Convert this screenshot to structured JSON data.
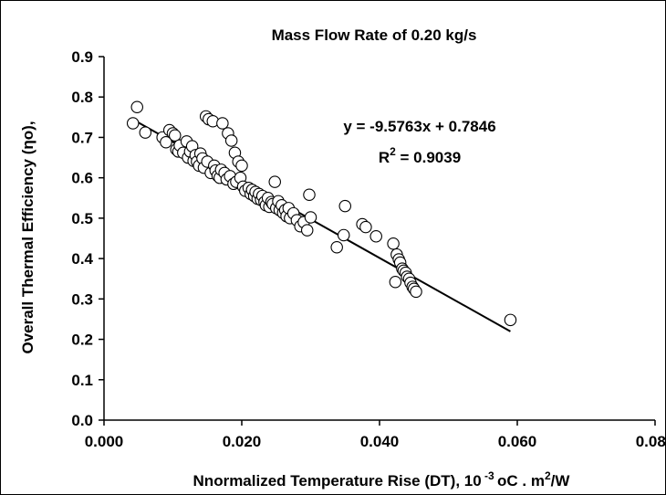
{
  "chart_data": {
    "type": "scatter",
    "title": "Mass Flow Rate of 0.20 kg/s",
    "xlabel": {
      "main": "Nnormalized Temperature Rise (DT), 10",
      "sup1": " -3 ",
      "mid": "oC . m",
      "sup2": "2",
      "end": "/W"
    },
    "ylabel": "Overall Thermal Efficiency (ηo),",
    "xlim": [
      0.0,
      0.08
    ],
    "ylim": [
      0.0,
      0.9
    ],
    "xticks": [
      "0.000",
      "0.020",
      "0.040",
      "0.060",
      "0.080"
    ],
    "xtick_values": [
      0.0,
      0.02,
      0.04,
      0.06,
      0.08
    ],
    "yticks": [
      "0.0",
      "0.1",
      "0.2",
      "0.3",
      "0.4",
      "0.5",
      "0.6",
      "0.7",
      "0.8",
      "0.9"
    ],
    "ytick_values": [
      0.0,
      0.1,
      0.2,
      0.3,
      0.4,
      0.5,
      0.6,
      0.7,
      0.8,
      0.9
    ],
    "grid": false,
    "legend": "none",
    "annotation": {
      "equation": "y = -9.5763x + 0.7846",
      "r2_label": "R",
      "r2_sup": "2",
      "r2_value": " = 0.9039"
    },
    "trendline": {
      "slope": -9.5763,
      "intercept": 0.7846,
      "x_range": [
        0.004,
        0.059
      ]
    },
    "marker": {
      "shape": "circle",
      "fill": "#ffffff",
      "stroke": "#000000"
    },
    "points": [
      [
        0.0042,
        0.735
      ],
      [
        0.0048,
        0.775
      ],
      [
        0.006,
        0.712
      ],
      [
        0.0085,
        0.7
      ],
      [
        0.009,
        0.688
      ],
      [
        0.0095,
        0.718
      ],
      [
        0.01,
        0.71
      ],
      [
        0.0103,
        0.705
      ],
      [
        0.0105,
        0.67
      ],
      [
        0.0108,
        0.665
      ],
      [
        0.011,
        0.68
      ],
      [
        0.0115,
        0.662
      ],
      [
        0.012,
        0.69
      ],
      [
        0.0122,
        0.65
      ],
      [
        0.0125,
        0.665
      ],
      [
        0.0128,
        0.678
      ],
      [
        0.013,
        0.642
      ],
      [
        0.0133,
        0.656
      ],
      [
        0.0135,
        0.64
      ],
      [
        0.0138,
        0.63
      ],
      [
        0.014,
        0.66
      ],
      [
        0.0143,
        0.648
      ],
      [
        0.0145,
        0.625
      ],
      [
        0.0148,
        0.752
      ],
      [
        0.015,
        0.64
      ],
      [
        0.0152,
        0.745
      ],
      [
        0.0155,
        0.612
      ],
      [
        0.0158,
        0.74
      ],
      [
        0.016,
        0.63
      ],
      [
        0.0162,
        0.618
      ],
      [
        0.0165,
        0.605
      ],
      [
        0.0168,
        0.6
      ],
      [
        0.017,
        0.62
      ],
      [
        0.0172,
        0.735
      ],
      [
        0.0175,
        0.612
      ],
      [
        0.0178,
        0.596
      ],
      [
        0.018,
        0.71
      ],
      [
        0.0183,
        0.604
      ],
      [
        0.0185,
        0.692
      ],
      [
        0.0188,
        0.585
      ],
      [
        0.019,
        0.662
      ],
      [
        0.0192,
        0.59
      ],
      [
        0.0195,
        0.64
      ],
      [
        0.0198,
        0.6
      ],
      [
        0.02,
        0.63
      ],
      [
        0.0202,
        0.578
      ],
      [
        0.0205,
        0.568
      ],
      [
        0.021,
        0.575
      ],
      [
        0.0213,
        0.56
      ],
      [
        0.0215,
        0.57
      ],
      [
        0.0218,
        0.555
      ],
      [
        0.022,
        0.565
      ],
      [
        0.0223,
        0.548
      ],
      [
        0.0225,
        0.56
      ],
      [
        0.0228,
        0.545
      ],
      [
        0.023,
        0.555
      ],
      [
        0.0233,
        0.54
      ],
      [
        0.0235,
        0.532
      ],
      [
        0.0238,
        0.55
      ],
      [
        0.024,
        0.528
      ],
      [
        0.0243,
        0.54
      ],
      [
        0.0245,
        0.535
      ],
      [
        0.0248,
        0.59
      ],
      [
        0.025,
        0.525
      ],
      [
        0.0253,
        0.542
      ],
      [
        0.0255,
        0.52
      ],
      [
        0.0258,
        0.532
      ],
      [
        0.026,
        0.513
      ],
      [
        0.0263,
        0.52
      ],
      [
        0.0265,
        0.505
      ],
      [
        0.0268,
        0.525
      ],
      [
        0.027,
        0.5
      ],
      [
        0.0275,
        0.512
      ],
      [
        0.028,
        0.495
      ],
      [
        0.0285,
        0.48
      ],
      [
        0.029,
        0.49
      ],
      [
        0.0295,
        0.47
      ],
      [
        0.0298,
        0.558
      ],
      [
        0.03,
        0.502
      ],
      [
        0.0338,
        0.428
      ],
      [
        0.0348,
        0.458
      ],
      [
        0.035,
        0.53
      ],
      [
        0.0375,
        0.485
      ],
      [
        0.038,
        0.478
      ],
      [
        0.0395,
        0.455
      ],
      [
        0.042,
        0.437
      ],
      [
        0.0423,
        0.342
      ],
      [
        0.0425,
        0.41
      ],
      [
        0.0428,
        0.398
      ],
      [
        0.043,
        0.39
      ],
      [
        0.0433,
        0.375
      ],
      [
        0.0435,
        0.37
      ],
      [
        0.0438,
        0.365
      ],
      [
        0.044,
        0.355
      ],
      [
        0.0443,
        0.35
      ],
      [
        0.0445,
        0.34
      ],
      [
        0.0448,
        0.33
      ],
      [
        0.045,
        0.325
      ],
      [
        0.0453,
        0.318
      ],
      [
        0.059,
        0.248
      ]
    ]
  }
}
